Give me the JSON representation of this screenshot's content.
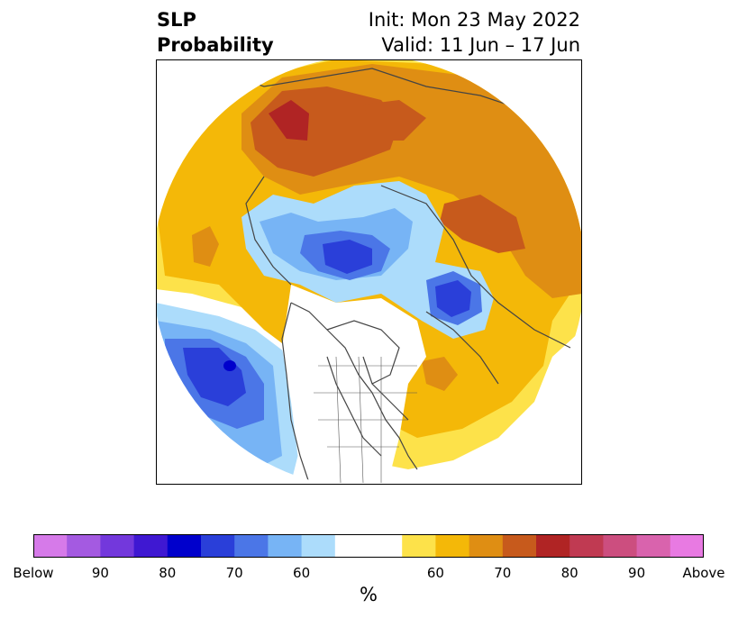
{
  "title": {
    "left_line1": "SLP",
    "left_line2": "Probability",
    "right_line1": "Init: Mon 23 May 2022",
    "right_line2": "Valid: 11 Jun – 17 Jun"
  },
  "map": {
    "projection": "north-polar-stereographic",
    "colors": {
      "below_60": "#acdcfb",
      "below_65": "#77b4f5",
      "below_70": "#4b76e7",
      "below_75": "#2a3fd9",
      "below_80": "#0000cc",
      "above_60": "#fde24a",
      "above_65": "#f4b808",
      "above_70": "#df8e13",
      "above_75": "#c75a1c",
      "above_80": "#b02424"
    }
  },
  "colorbar": {
    "colors": [
      "#d67ae9",
      "#a45ae1",
      "#7338dc",
      "#3f18d2",
      "#0000cc",
      "#2a3fd9",
      "#4b76e7",
      "#77b4f5",
      "#acdcfb",
      "#ffffff",
      "#fde24a",
      "#f4b808",
      "#df8e13",
      "#c75a1c",
      "#b02424",
      "#c03a52",
      "#cc4e7f",
      "#d963ad",
      "#e87ae2"
    ],
    "ticks": [
      "Below",
      "90",
      "80",
      "70",
      "60",
      "60",
      "70",
      "80",
      "90",
      "Above"
    ],
    "unit": "%"
  }
}
